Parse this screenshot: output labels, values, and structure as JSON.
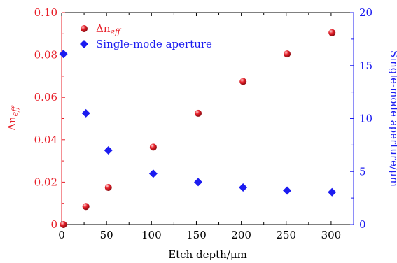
{
  "chart_data": {
    "type": "scatter",
    "x_label": "Etch depth/μm",
    "y_left_label": {
      "main": "Δn",
      "sub": "eff"
    },
    "y_right_label": "Single-mode aperture/μm",
    "x_ticks": [
      0,
      50,
      100,
      150,
      200,
      250,
      300
    ],
    "x_range": [
      0,
      325
    ],
    "y_left_ticks": [
      "0",
      "0.02",
      "0.04",
      "0.06",
      "0.08",
      "0.10"
    ],
    "y_left_range": [
      0,
      0.1
    ],
    "y_right_ticks": [
      "0",
      "5",
      "10",
      "15",
      "20"
    ],
    "y_right_range": [
      0,
      20
    ],
    "grid": false,
    "legend_position": "top-left",
    "series": [
      {
        "name": {
          "main": "Δn",
          "sub": "eff"
        },
        "axis": "left",
        "marker": "sphere",
        "color": "#e8202a",
        "points": [
          {
            "x": 2,
            "y": 0.0
          },
          {
            "x": 27,
            "y": 0.0085
          },
          {
            "x": 52,
            "y": 0.0175
          },
          {
            "x": 102,
            "y": 0.0365
          },
          {
            "x": 152,
            "y": 0.0525
          },
          {
            "x": 202,
            "y": 0.0675
          },
          {
            "x": 251,
            "y": 0.0805
          },
          {
            "x": 301,
            "y": 0.0905
          }
        ]
      },
      {
        "name": "Single-mode aperture",
        "axis": "right",
        "marker": "diamond",
        "color": "#1c1cf0",
        "points": [
          {
            "x": 2,
            "y": 16.1
          },
          {
            "x": 27,
            "y": 10.5
          },
          {
            "x": 52,
            "y": 7.0
          },
          {
            "x": 102,
            "y": 4.8
          },
          {
            "x": 152,
            "y": 4.0
          },
          {
            "x": 202,
            "y": 3.5
          },
          {
            "x": 251,
            "y": 3.2
          },
          {
            "x": 301,
            "y": 3.05
          }
        ]
      }
    ]
  },
  "colors": {
    "left_axis": "#e8202a",
    "right_axis": "#1c1cf0",
    "bottom_axis": "#000000"
  }
}
